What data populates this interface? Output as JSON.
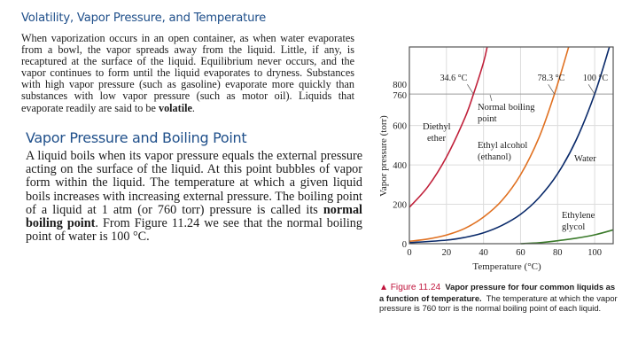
{
  "section1": {
    "heading": "Volatility, Vapor Pressure, and Temperature",
    "paragraph_parts": [
      "When vaporization occurs in an open container, as when water evaporates from a bowl, the vapor spreads away from the liquid. Little, if any, is recaptured at the surface of the liquid. Equilibrium never occurs, and the vapor continues to form until the liquid evaporates to dryness. Substances with high vapor pressure (such as gasoline) evaporate more quickly than substances with low vapor pressure (such as motor oil). Liquids that evaporate readily are said to be ",
      "volatile",
      "."
    ]
  },
  "section2": {
    "heading": "Vapor Pressure and Boiling Point",
    "paragraph_parts": [
      "A liquid boils when its vapor pressure equals the external pressure acting on the surface of the liquid. At this point bubbles of vapor form within the liquid. The temperature at which a given liquid boils increases with increasing external pressure. The boiling point of a liquid at 1 atm (or 760 torr) pressure is called its ",
      "normal boiling point",
      ". From Figure 11.24 we see that the normal boiling point of water is 100 °C."
    ]
  },
  "figure": {
    "marker": "▲",
    "number": "Figure 11.24",
    "title": "Vapor pressure for four common liquids as a function of temperature.",
    "text": "The temperature at which the vapor pressure is 760 torr is the normal boiling point of each liquid."
  },
  "chart_data": {
    "type": "line",
    "title": "Vapor pressure for four common liquids as a function of temperature",
    "xlabel": "Temperature (°C)",
    "ylabel": "Vapor pressure (torr)",
    "xlim": [
      0,
      110
    ],
    "ylim": [
      0,
      1000
    ],
    "x_ticks": [
      "0",
      "20",
      "40",
      "60",
      "80",
      "100"
    ],
    "y_ticks": [
      "0",
      "200",
      "400",
      "600",
      "760",
      "800"
    ],
    "grid": true,
    "reference_line": {
      "y": 760,
      "label": "Normal boiling point"
    },
    "annotations": [
      {
        "text": "34.6 °C",
        "x": 34.6,
        "y": 760
      },
      {
        "text": "78.3 °C",
        "x": 78.3,
        "y": 760
      },
      {
        "text": "100 °C",
        "x": 100,
        "y": 760
      }
    ],
    "series": [
      {
        "name": "Diethyl ether",
        "color": "#c0203a",
        "x": [
          0,
          10,
          20,
          30,
          34.6,
          40,
          42
        ],
        "values": [
          185,
          290,
          440,
          640,
          760,
          920,
          1000
        ]
      },
      {
        "name": "Ethyl alcohol (ethanol)",
        "color": "#e07020",
        "x": [
          0,
          10,
          20,
          30,
          40,
          50,
          60,
          70,
          78.3,
          86
        ],
        "values": [
          12,
          24,
          44,
          78,
          135,
          220,
          350,
          540,
          760,
          1000
        ]
      },
      {
        "name": "Water",
        "color": "#0a2a6a",
        "x": [
          0,
          20,
          30,
          40,
          50,
          60,
          70,
          80,
          90,
          100,
          108
        ],
        "values": [
          5,
          18,
          32,
          55,
          93,
          149,
          234,
          355,
          526,
          760,
          1000
        ]
      },
      {
        "name": "Ethylene glycol",
        "color": "#3a7a2a",
        "x": [
          60,
          70,
          80,
          90,
          100,
          110
        ],
        "values": [
          0,
          5,
          15,
          28,
          45,
          70
        ]
      }
    ],
    "labels": {
      "ether": [
        "Diethyl",
        "ether"
      ],
      "ethanol": [
        "Ethyl alcohol",
        "(ethanol)"
      ],
      "water": "Water",
      "glycol": [
        "Ethylene",
        "glycol"
      ],
      "nbp": [
        "Normal boiling",
        "point"
      ]
    }
  }
}
